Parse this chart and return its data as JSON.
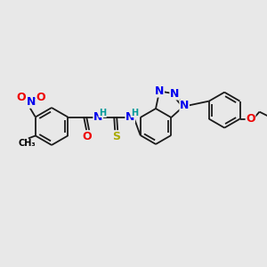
{
  "background_color": "#e8e8e8",
  "bond_color": "#1a1a1a",
  "atom_colors": {
    "N": "#0000ee",
    "O": "#ee0000",
    "S": "#aaaa00",
    "H": "#009999",
    "C_label": "#000000"
  },
  "font_size_atoms": 9,
  "font_size_small": 7,
  "figsize": [
    3.0,
    3.0
  ],
  "dpi": 100
}
